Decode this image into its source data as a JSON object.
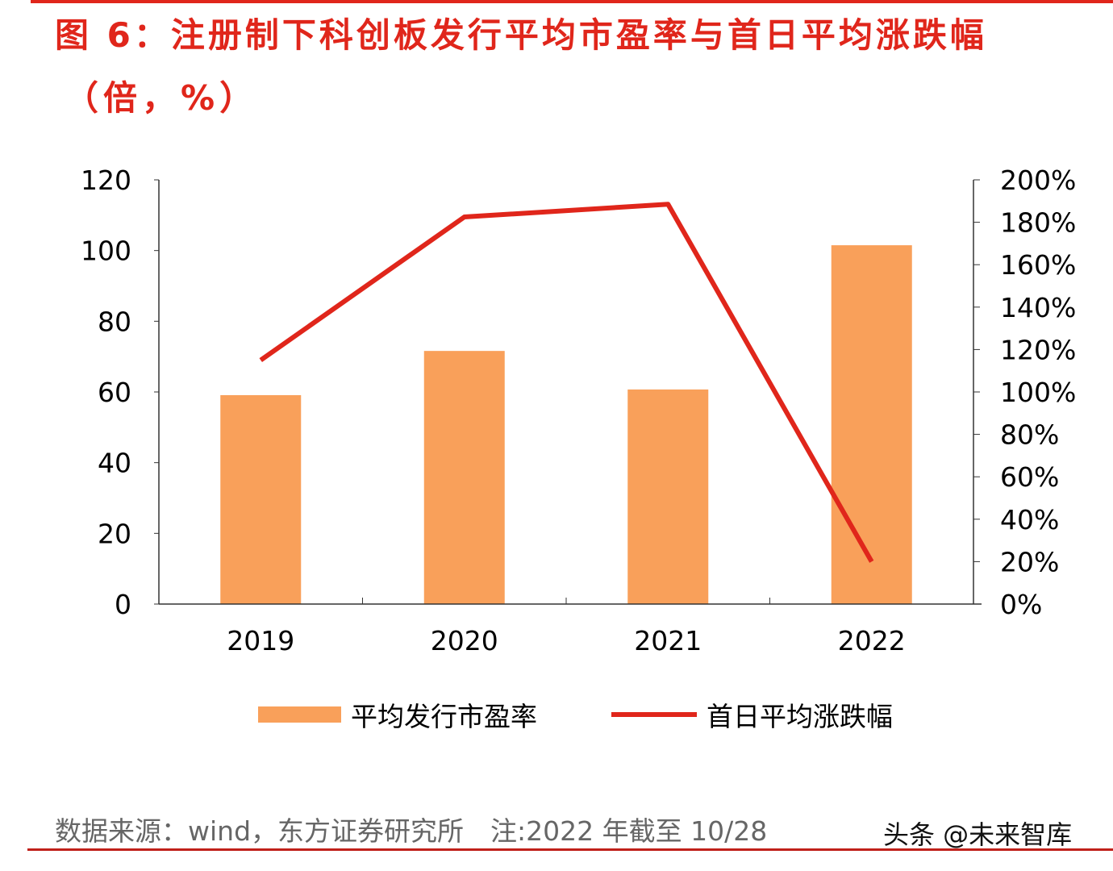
{
  "title_line1": "图 6：注册制下科创板发行平均市盈率与首日平均涨跌幅",
  "title_line2": "（倍，%）",
  "colors": {
    "bar": "#f9a05a",
    "line": "#e0261b",
    "title": "#e0261b"
  },
  "chart_data": {
    "type": "bar+line",
    "categories": [
      "2019",
      "2020",
      "2021",
      "2022"
    ],
    "series": [
      {
        "name": "平均发行市盈率",
        "type": "bar",
        "axis": "left",
        "values": [
          59.1,
          71.6,
          60.7,
          101.5
        ]
      },
      {
        "name": "首日平均涨跌幅",
        "type": "line",
        "axis": "right",
        "values": [
          115,
          182.5,
          188.5,
          20
        ]
      }
    ],
    "left_axis": {
      "ylim": [
        0,
        120
      ],
      "ticks": [
        "0",
        "20",
        "40",
        "60",
        "80",
        "100",
        "120"
      ]
    },
    "right_axis": {
      "ylim": [
        0,
        200
      ],
      "ticks": [
        "0%",
        "20%",
        "40%",
        "60%",
        "80%",
        "100%",
        "120%",
        "140%",
        "160%",
        "180%",
        "200%"
      ]
    },
    "grid": false,
    "legend": "bottom"
  },
  "source": "数据来源：wind，东方证券研究所　注:2022 年截至 10/28",
  "watermark": "头条 @未来智库"
}
